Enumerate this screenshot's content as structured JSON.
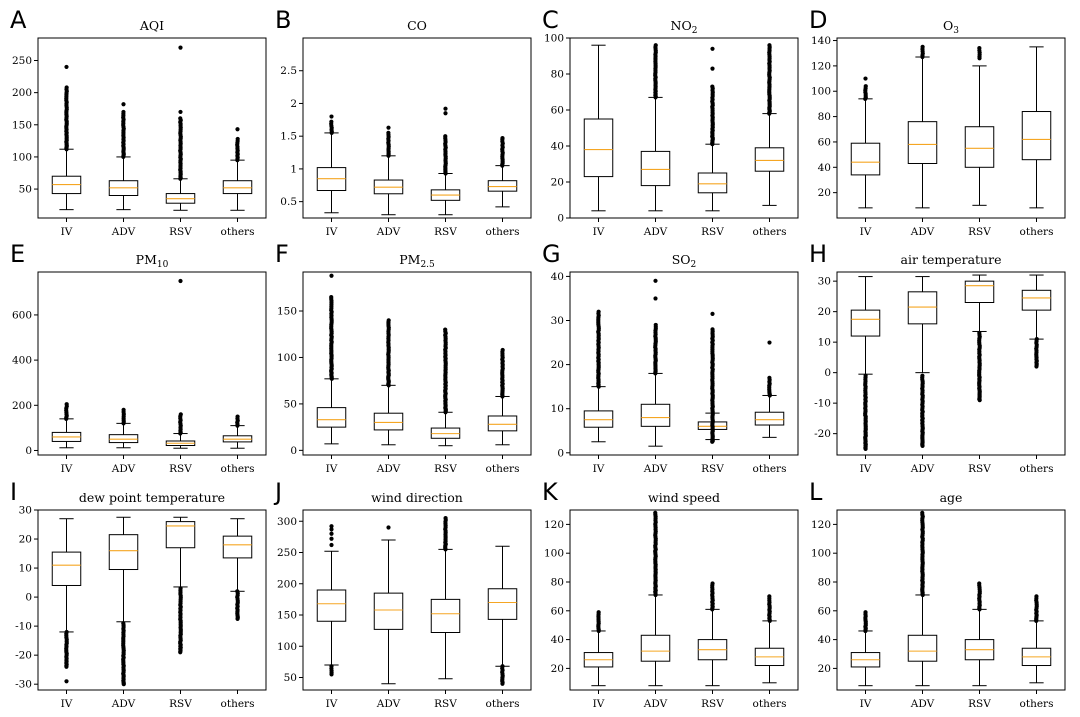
{
  "colors": {
    "median": "#f5a623",
    "box_edge": "#000000",
    "flier": "#000000",
    "background": "#ffffff"
  },
  "chart_data": [
    {
      "panel": "A",
      "title": "AQI",
      "type": "box",
      "ylim": [
        5,
        285
      ],
      "yticks": [
        50,
        100,
        150,
        200,
        250
      ],
      "categories": [
        "IV",
        "ADV",
        "RSV",
        "others"
      ],
      "boxes": [
        {
          "q1": 43,
          "median": 57,
          "q3": 70,
          "whislo": 18,
          "whishi": 112,
          "fliers_range": [
            112,
            208
          ],
          "fliers": [
            240
          ]
        },
        {
          "q1": 40,
          "median": 52,
          "q3": 63,
          "whislo": 18,
          "whishi": 100,
          "fliers_range": [
            100,
            170
          ],
          "fliers": [
            182
          ]
        },
        {
          "q1": 28,
          "median": 35,
          "q3": 43,
          "whislo": 17,
          "whishi": 66,
          "fliers_range": [
            66,
            160
          ],
          "fliers": [
            170,
            270
          ]
        },
        {
          "q1": 43,
          "median": 52,
          "q3": 63,
          "whislo": 17,
          "whishi": 95,
          "fliers_range": [
            95,
            128
          ],
          "fliers": [
            143
          ]
        }
      ]
    },
    {
      "panel": "B",
      "title": "CO",
      "type": "box",
      "ylim": [
        0.25,
        3.0
      ],
      "yticks": [
        0.5,
        1.0,
        1.5,
        2.0,
        2.5
      ],
      "categories": [
        "IV",
        "ADV",
        "RSV",
        "others"
      ],
      "boxes": [
        {
          "q1": 0.67,
          "median": 0.85,
          "q3": 1.02,
          "whislo": 0.33,
          "whishi": 1.55,
          "fliers_range": [
            1.55,
            1.72
          ],
          "fliers": [
            1.8
          ]
        },
        {
          "q1": 0.62,
          "median": 0.72,
          "q3": 0.83,
          "whislo": 0.3,
          "whishi": 1.2,
          "fliers_range": [
            1.2,
            1.55
          ],
          "fliers": [
            1.63
          ]
        },
        {
          "q1": 0.52,
          "median": 0.6,
          "q3": 0.68,
          "whislo": 0.3,
          "whishi": 0.93,
          "fliers_range": [
            0.93,
            1.5
          ],
          "fliers": [
            1.85,
            1.92
          ]
        },
        {
          "q1": 0.66,
          "median": 0.73,
          "q3": 0.82,
          "whislo": 0.42,
          "whishi": 1.05,
          "fliers_range": [
            1.05,
            1.45
          ],
          "fliers": [
            1.47
          ]
        }
      ]
    },
    {
      "panel": "C",
      "title": "NO",
      "title_sub": "2",
      "type": "box",
      "ylim": [
        0,
        100
      ],
      "yticks": [
        0,
        20,
        40,
        60,
        80,
        100
      ],
      "categories": [
        "IV",
        "ADV",
        "RSV",
        "others"
      ],
      "boxes": [
        {
          "q1": 23,
          "median": 38,
          "q3": 55,
          "whislo": 4,
          "whishi": 96,
          "fliers_range": null,
          "fliers": []
        },
        {
          "q1": 18,
          "median": 27,
          "q3": 37,
          "whislo": 4,
          "whishi": 67,
          "fliers_range": [
            67,
            96
          ],
          "fliers": []
        },
        {
          "q1": 14,
          "median": 19,
          "q3": 25,
          "whislo": 4,
          "whishi": 41,
          "fliers_range": [
            41,
            73
          ],
          "fliers": [
            83,
            94
          ]
        },
        {
          "q1": 26,
          "median": 32,
          "q3": 39,
          "whislo": 7,
          "whishi": 58,
          "fliers_range": [
            58,
            96
          ],
          "fliers": []
        }
      ]
    },
    {
      "panel": "D",
      "title": "O",
      "title_sub": "3",
      "type": "box",
      "ylim": [
        0,
        142
      ],
      "yticks": [
        20,
        40,
        60,
        80,
        100,
        120,
        140
      ],
      "categories": [
        "IV",
        "ADV",
        "RSV",
        "others"
      ],
      "boxes": [
        {
          "q1": 34,
          "median": 44,
          "q3": 59,
          "whislo": 8,
          "whishi": 94,
          "fliers_range": [
            94,
            104
          ],
          "fliers": [
            110
          ]
        },
        {
          "q1": 43,
          "median": 58,
          "q3": 76,
          "whislo": 8,
          "whishi": 127,
          "fliers_range": [
            127,
            135
          ],
          "fliers": []
        },
        {
          "q1": 40,
          "median": 55,
          "q3": 72,
          "whislo": 10,
          "whishi": 120,
          "fliers_range": [
            126,
            134
          ],
          "fliers": []
        },
        {
          "q1": 46,
          "median": 62,
          "q3": 84,
          "whislo": 8,
          "whishi": 135,
          "fliers_range": null,
          "fliers": []
        }
      ]
    },
    {
      "panel": "E",
      "title": "PM",
      "title_sub": "10",
      "type": "box",
      "ylim": [
        -20,
        790
      ],
      "yticks": [
        0,
        200,
        400,
        600
      ],
      "categories": [
        "IV",
        "ADV",
        "RSV",
        "others"
      ],
      "boxes": [
        {
          "q1": 40,
          "median": 60,
          "q3": 80,
          "whislo": 12,
          "whishi": 140,
          "fliers_range": [
            140,
            205
          ],
          "fliers": []
        },
        {
          "q1": 35,
          "median": 50,
          "q3": 70,
          "whislo": 12,
          "whishi": 120,
          "fliers_range": [
            120,
            180
          ],
          "fliers": []
        },
        {
          "q1": 22,
          "median": 32,
          "q3": 42,
          "whislo": 10,
          "whishi": 75,
          "fliers_range": [
            75,
            160
          ],
          "fliers": [
            750
          ]
        },
        {
          "q1": 38,
          "median": 50,
          "q3": 65,
          "whislo": 10,
          "whishi": 110,
          "fliers_range": [
            110,
            150
          ],
          "fliers": []
        }
      ]
    },
    {
      "panel": "F",
      "title": "PM",
      "title_sub": "2.5",
      "type": "box",
      "ylim": [
        -5,
        192
      ],
      "yticks": [
        0,
        50,
        100,
        150
      ],
      "categories": [
        "IV",
        "ADV",
        "RSV",
        "others"
      ],
      "boxes": [
        {
          "q1": 25,
          "median": 33,
          "q3": 46,
          "whislo": 7,
          "whishi": 77,
          "fliers_range": [
            77,
            165
          ],
          "fliers": [
            188
          ]
        },
        {
          "q1": 22,
          "median": 30,
          "q3": 40,
          "whislo": 6,
          "whishi": 70,
          "fliers_range": [
            70,
            140
          ],
          "fliers": []
        },
        {
          "q1": 13,
          "median": 18,
          "q3": 24,
          "whislo": 5,
          "whishi": 41,
          "fliers_range": [
            41,
            130
          ],
          "fliers": []
        },
        {
          "q1": 21,
          "median": 28,
          "q3": 37,
          "whislo": 6,
          "whishi": 58,
          "fliers_range": [
            58,
            108
          ],
          "fliers": []
        }
      ]
    },
    {
      "panel": "G",
      "title": "SO",
      "title_sub": "2",
      "type": "box",
      "ylim": [
        -0.5,
        41
      ],
      "yticks": [
        0,
        10,
        20,
        30,
        40
      ],
      "categories": [
        "IV",
        "ADV",
        "RSV",
        "others"
      ],
      "boxes": [
        {
          "q1": 5.8,
          "median": 7.5,
          "q3": 9.5,
          "whislo": 2.5,
          "whishi": 15,
          "fliers_range": [
            15,
            32
          ],
          "fliers": []
        },
        {
          "q1": 6,
          "median": 8,
          "q3": 11,
          "whislo": 1.5,
          "whishi": 18,
          "fliers_range": [
            18,
            29
          ],
          "fliers": [
            35,
            39
          ]
        },
        {
          "q1": 5.3,
          "median": 6,
          "q3": 7,
          "whislo": 3,
          "whishi": 9,
          "fliers_range": [
            2.5,
            28
          ],
          "fliers": [
            31.5
          ]
        },
        {
          "q1": 6.3,
          "median": 7.5,
          "q3": 9.2,
          "whislo": 3.5,
          "whishi": 13,
          "fliers_range": [
            13,
            17
          ],
          "fliers": [
            25
          ]
        }
      ]
    },
    {
      "panel": "H",
      "title": "air temperature",
      "type": "box",
      "ylim": [
        -27,
        33
      ],
      "yticks": [
        -20,
        -10,
        0,
        10,
        20,
        30
      ],
      "categories": [
        "IV",
        "ADV",
        "RSV",
        "others"
      ],
      "boxes": [
        {
          "q1": 12,
          "median": 17.5,
          "q3": 20.5,
          "whislo": -0.5,
          "whishi": 31.5,
          "fliers_range": [
            -25,
            -1
          ],
          "fliers": []
        },
        {
          "q1": 16,
          "median": 21.5,
          "q3": 26.5,
          "whislo": 0,
          "whishi": 31.5,
          "fliers_range": [
            -24,
            -1
          ],
          "fliers": []
        },
        {
          "q1": 23,
          "median": 28.5,
          "q3": 30,
          "whislo": 13.5,
          "whishi": 32,
          "fliers_range": [
            -9,
            13
          ],
          "fliers": []
        },
        {
          "q1": 20.5,
          "median": 24.5,
          "q3": 27,
          "whislo": 11,
          "whishi": 32,
          "fliers_range": [
            2,
            11
          ],
          "fliers": []
        }
      ]
    },
    {
      "panel": "I",
      "title": "dew point temperature",
      "type": "box",
      "ylim": [
        -32,
        30
      ],
      "yticks": [
        -30,
        -20,
        -10,
        0,
        10,
        20,
        30
      ],
      "categories": [
        "IV",
        "ADV",
        "RSV",
        "others"
      ],
      "boxes": [
        {
          "q1": 4,
          "median": 11,
          "q3": 15.5,
          "whislo": -12,
          "whishi": 27,
          "fliers_range": [
            -24,
            -12
          ],
          "fliers": [
            -29
          ]
        },
        {
          "q1": 9.5,
          "median": 16,
          "q3": 21.5,
          "whislo": -8.5,
          "whishi": 27.5,
          "fliers_range": [
            -30,
            -9
          ],
          "fliers": []
        },
        {
          "q1": 17,
          "median": 24.5,
          "q3": 26,
          "whislo": 3.5,
          "whishi": 27.5,
          "fliers_range": [
            -19,
            3
          ],
          "fliers": []
        },
        {
          "q1": 13.5,
          "median": 18,
          "q3": 21,
          "whislo": 2,
          "whishi": 27,
          "fliers_range": [
            -7.5,
            2
          ],
          "fliers": []
        }
      ]
    },
    {
      "panel": "J",
      "title": "wind direction",
      "type": "box",
      "ylim": [
        30,
        318
      ],
      "yticks": [
        50,
        100,
        150,
        200,
        250,
        300
      ],
      "categories": [
        "IV",
        "ADV",
        "RSV",
        "others"
      ],
      "boxes": [
        {
          "q1": 140,
          "median": 168,
          "q3": 190,
          "whislo": 70,
          "whishi": 252,
          "fliers_range": [
            55,
            68
          ],
          "fliers": [
            262,
            272,
            280,
            287,
            292
          ]
        },
        {
          "q1": 127,
          "median": 158,
          "q3": 185,
          "whislo": 40,
          "whishi": 270,
          "fliers_range": null,
          "fliers": [
            290
          ]
        },
        {
          "q1": 122,
          "median": 152,
          "q3": 175,
          "whislo": 48,
          "whishi": 255,
          "fliers_range": [
            255,
            305
          ],
          "fliers": []
        },
        {
          "q1": 143,
          "median": 170,
          "q3": 192,
          "whislo": 68,
          "whishi": 260,
          "fliers_range": [
            40,
            68
          ],
          "fliers": []
        }
      ]
    },
    {
      "panel": "K",
      "title": "wind speed",
      "type": "box",
      "ylim": [
        5,
        130
      ],
      "yticks": [
        20,
        40,
        60,
        80,
        100,
        120
      ],
      "categories": [
        "IV",
        "ADV",
        "RSV",
        "others"
      ],
      "boxes": [
        {
          "q1": 21,
          "median": 26,
          "q3": 31,
          "whislo": 8,
          "whishi": 46,
          "fliers_range": [
            46,
            59
          ],
          "fliers": []
        },
        {
          "q1": 25,
          "median": 32,
          "q3": 43,
          "whislo": 8,
          "whishi": 71,
          "fliers_range": [
            71,
            128
          ],
          "fliers": []
        },
        {
          "q1": 26,
          "median": 33,
          "q3": 40,
          "whislo": 8,
          "whishi": 61,
          "fliers_range": [
            61,
            79
          ],
          "fliers": []
        },
        {
          "q1": 22,
          "median": 28,
          "q3": 34,
          "whislo": 10,
          "whishi": 53,
          "fliers_range": [
            53,
            70
          ],
          "fliers": []
        }
      ]
    },
    {
      "panel": "L",
      "title": "age",
      "type": "box",
      "ylim": [
        5,
        130
      ],
      "yticks": [
        20,
        40,
        60,
        80,
        100,
        120
      ],
      "categories": [
        "IV",
        "ADV",
        "RSV",
        "others"
      ],
      "boxes": [
        {
          "q1": 21,
          "median": 26,
          "q3": 31,
          "whislo": 8,
          "whishi": 46,
          "fliers_range": [
            46,
            59
          ],
          "fliers": []
        },
        {
          "q1": 25,
          "median": 32,
          "q3": 43,
          "whislo": 8,
          "whishi": 71,
          "fliers_range": [
            71,
            128
          ],
          "fliers": []
        },
        {
          "q1": 26,
          "median": 33,
          "q3": 40,
          "whislo": 8,
          "whishi": 61,
          "fliers_range": [
            61,
            79
          ],
          "fliers": []
        },
        {
          "q1": 22,
          "median": 28,
          "q3": 34,
          "whislo": 10,
          "whishi": 53,
          "fliers_range": [
            53,
            70
          ],
          "fliers": []
        }
      ]
    }
  ]
}
